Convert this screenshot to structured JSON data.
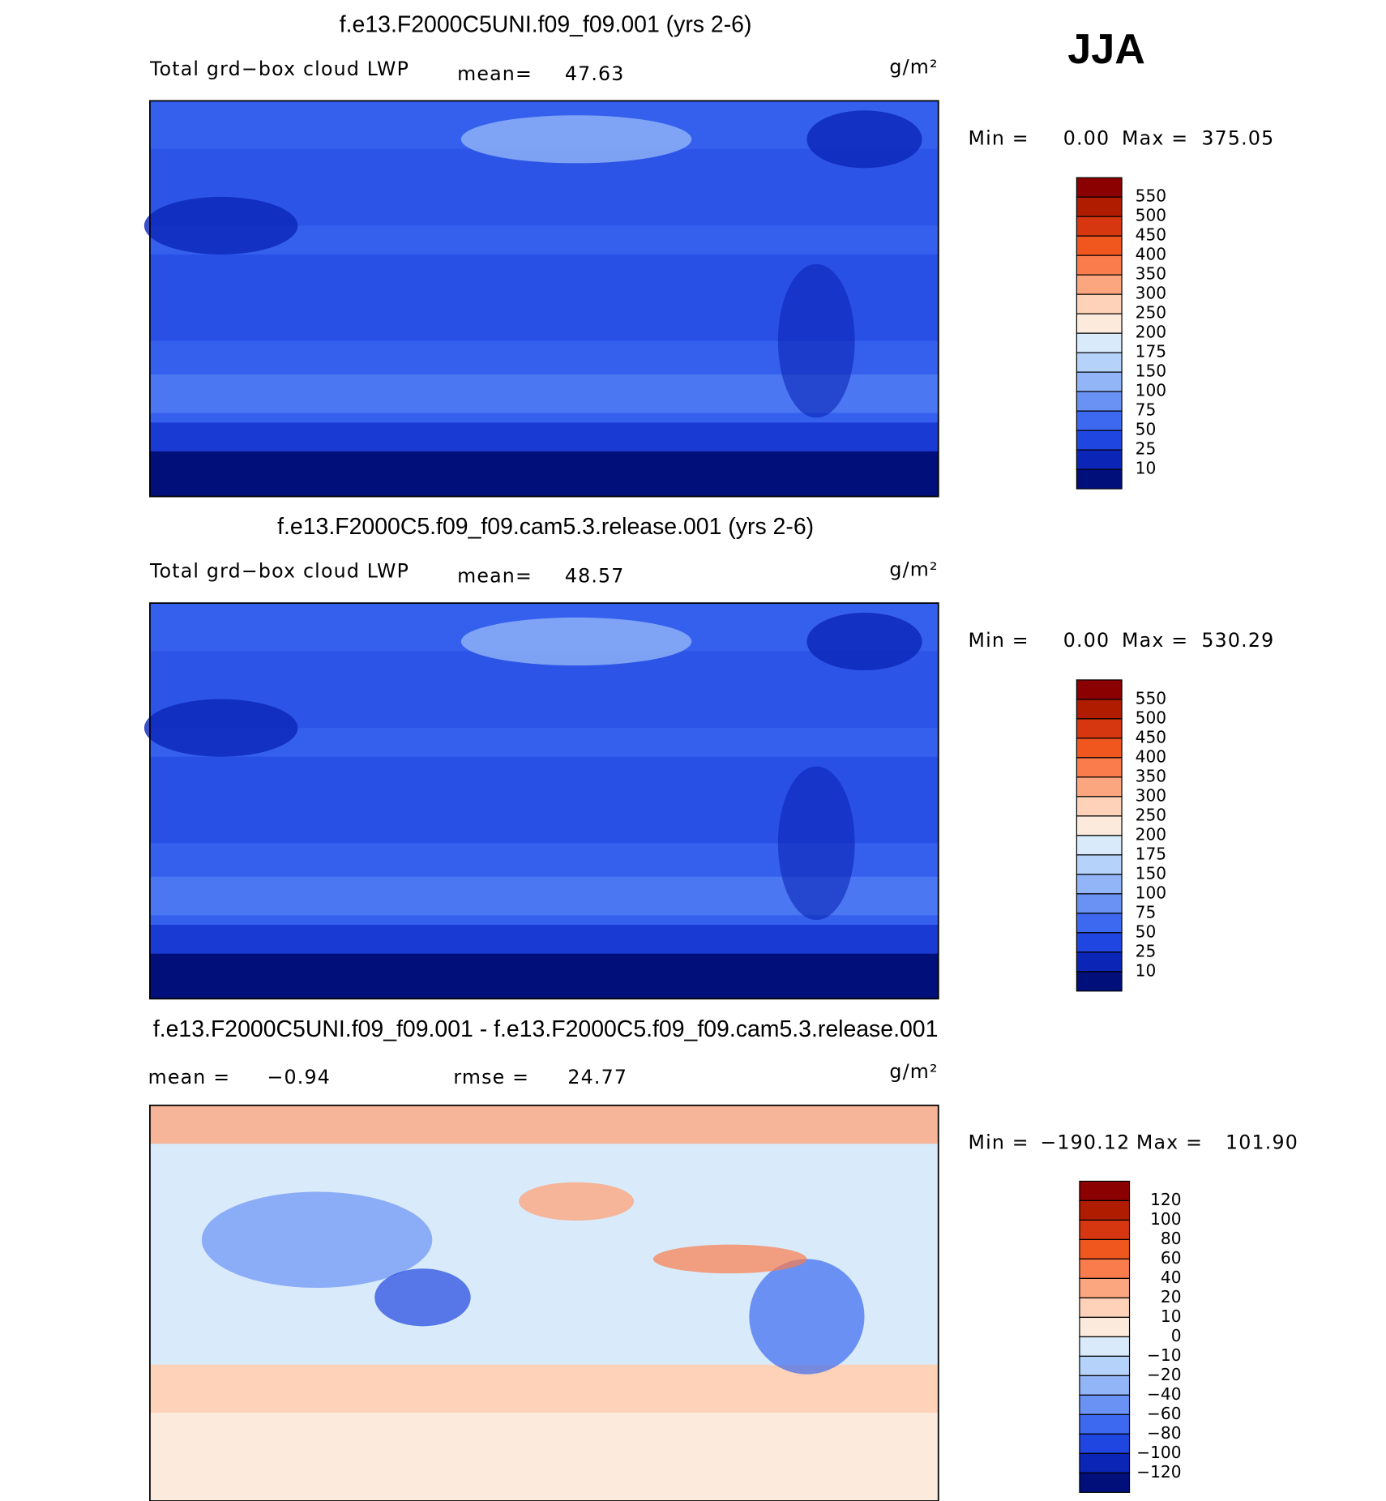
{
  "season": "JJA",
  "panels": [
    {
      "title": "f.e13.F2000C5UNI.f09_f09.001 (yrs 2-6)",
      "field": "Total grd−box cloud LWP",
      "mean_label": "mean=",
      "mean": "47.63",
      "units": "g/m²",
      "min_label": "Min =",
      "min": "0.00",
      "max_label": "Max =",
      "max": "375.05",
      "colorbar": {
        "labels": [
          "550",
          "500",
          "450",
          "400",
          "350",
          "300",
          "250",
          "200",
          "175",
          "150",
          "100",
          "75",
          "50",
          "25",
          "10"
        ],
        "colors": [
          "#8b0000",
          "#b01c00",
          "#d63610",
          "#f0571f",
          "#fa7c4c",
          "#fca680",
          "#fdd2b8",
          "#fcebdc",
          "#d9ebfb",
          "#b5d3fa",
          "#92b5f8",
          "#6a92f5",
          "#3c69f0",
          "#1f46e0",
          "#0b25b6",
          "#000f7a"
        ]
      }
    },
    {
      "title": "f.e13.F2000C5.f09_f09.cam5.3.release.001 (yrs 2-6)",
      "field": "Total grd−box cloud LWP",
      "mean_label": "mean=",
      "mean": "48.57",
      "units": "g/m²",
      "min_label": "Min =",
      "min": "0.00",
      "max_label": "Max =",
      "max": "530.29",
      "colorbar": {
        "labels": [
          "550",
          "500",
          "450",
          "400",
          "350",
          "300",
          "250",
          "200",
          "175",
          "150",
          "100",
          "75",
          "50",
          "25",
          "10"
        ],
        "colors": [
          "#8b0000",
          "#b01c00",
          "#d63610",
          "#f0571f",
          "#fa7c4c",
          "#fca680",
          "#fdd2b8",
          "#fcebdc",
          "#d9ebfb",
          "#b5d3fa",
          "#92b5f8",
          "#6a92f5",
          "#3c69f0",
          "#1f46e0",
          "#0b25b6",
          "#000f7a"
        ]
      }
    },
    {
      "title": "f.e13.F2000C5UNI.f09_f09.001 - f.e13.F2000C5.f09_f09.cam5.3.release.001",
      "mean_label": "mean =",
      "mean": "−0.94",
      "rmse_label": "rmse =",
      "rmse": "24.77",
      "units": "g/m²",
      "min_label": "Min =",
      "min": "−190.12",
      "max_label": "Max =",
      "max": "101.90",
      "colorbar": {
        "labels": [
          "120",
          "100",
          "80",
          "60",
          "40",
          "20",
          "10",
          "0",
          "−10",
          "−20",
          "−40",
          "−60",
          "−80",
          "−100",
          "−120"
        ],
        "colors": [
          "#8b0000",
          "#b01c00",
          "#d63610",
          "#f0571f",
          "#fa7c4c",
          "#fca680",
          "#fdd2b8",
          "#fcebdc",
          "#d9ebfb",
          "#b5d3fa",
          "#92b5f8",
          "#6a92f5",
          "#3c69f0",
          "#1f46e0",
          "#0b25b6",
          "#000f7a"
        ]
      }
    }
  ]
}
